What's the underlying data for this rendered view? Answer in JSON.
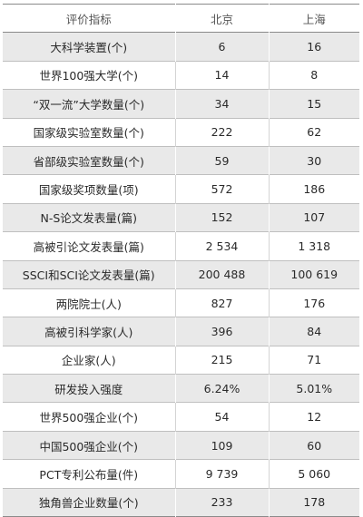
{
  "table": {
    "headers": [
      "评价指标",
      "北京",
      "上海"
    ],
    "rows": [
      [
        "大科学装置(个)",
        "6",
        "16"
      ],
      [
        "世界100强大学(个)",
        "14",
        "8"
      ],
      [
        "“双一流”大学数量(个)",
        "34",
        "15"
      ],
      [
        "国家级实验室数量(个)",
        "222",
        "62"
      ],
      [
        "省部级实验室数量(个)",
        "59",
        "30"
      ],
      [
        "国家级奖项数量(项)",
        "572",
        "186"
      ],
      [
        "N-S论文发表量(篇)",
        "152",
        "107"
      ],
      [
        "高被引论文发表量(篇)",
        "2 534",
        "1 318"
      ],
      [
        "SSCI和SCI论文发表量(篇)",
        "200 488",
        "100 619"
      ],
      [
        "两院院士(人)",
        "827",
        "176"
      ],
      [
        "高被引科学家(人)",
        "396",
        "84"
      ],
      [
        "企业家(人)",
        "215",
        "71"
      ],
      [
        "研发投入强度",
        "6.24%",
        "5.01%"
      ],
      [
        "世界500强企业(个)",
        "54",
        "12"
      ],
      [
        "中国500强企业(个)",
        "109",
        "60"
      ],
      [
        "PCT专利公布量(件)",
        "9 739",
        "5 060"
      ],
      [
        "独角兽企业数量(个)",
        "233",
        "178"
      ]
    ]
  }
}
